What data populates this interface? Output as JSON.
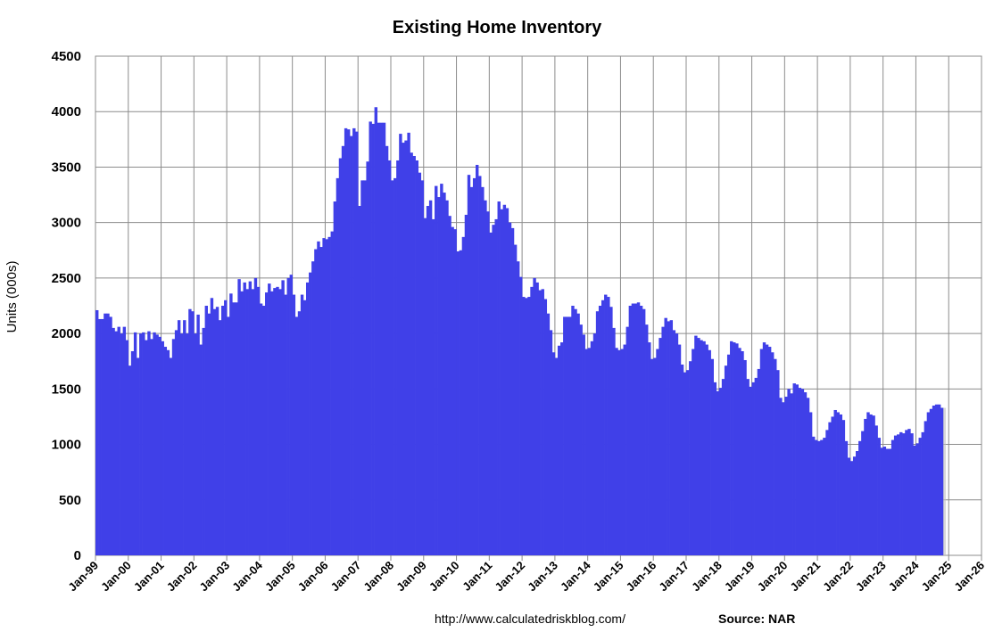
{
  "chart_data": {
    "type": "bar",
    "title": "Existing Home Inventory",
    "ylabel": "Units (000s)",
    "xlabel": "",
    "ylim": [
      0,
      4500
    ],
    "yticks": [
      "0",
      "500",
      "1000",
      "1500",
      "2000",
      "2500",
      "3000",
      "3500",
      "4000",
      "4500"
    ],
    "xlim_years": [
      1999,
      2026
    ],
    "xticks": [
      "Jan-99",
      "Jan-00",
      "Jan-01",
      "Jan-02",
      "Jan-03",
      "Jan-04",
      "Jan-05",
      "Jan-06",
      "Jan-07",
      "Jan-08",
      "Jan-09",
      "Jan-10",
      "Jan-11",
      "Jan-12",
      "Jan-13",
      "Jan-14",
      "Jan-15",
      "Jan-16",
      "Jan-17",
      "Jan-18",
      "Jan-19",
      "Jan-20",
      "Jan-21",
      "Jan-22",
      "Jan-23",
      "Jan-24",
      "Jan-25",
      "Jan-26"
    ],
    "grid": true,
    "bar_color": "#4040E8",
    "start": "Jan-99",
    "series": [
      {
        "values": [
          2210,
          2130,
          2130,
          2180,
          2180,
          2150,
          2050,
          2020,
          2060,
          2000,
          2060,
          1940,
          1710,
          1840,
          2010,
          1780,
          2000,
          2010,
          1940,
          2020,
          1950,
          2010,
          1990,
          1970,
          1930,
          1880,
          1850,
          1780,
          1950,
          2030,
          2120,
          2000,
          2120,
          2000,
          2220,
          2200,
          2000,
          2170,
          1900,
          2050,
          2250,
          2180,
          2320,
          2220,
          2240,
          2120,
          2250,
          2300,
          2150,
          2360,
          2280,
          2280,
          2490,
          2380,
          2460,
          2400,
          2470,
          2400,
          2500,
          2420,
          2270,
          2250,
          2370,
          2450,
          2380,
          2410,
          2420,
          2400,
          2480,
          2350,
          2500,
          2530,
          2350,
          2150,
          2200,
          2350,
          2300,
          2460,
          2550,
          2650,
          2760,
          2830,
          2780,
          2860,
          2850,
          2870,
          2920,
          3190,
          3400,
          3580,
          3690,
          3850,
          3840,
          3780,
          3850,
          3820,
          3150,
          3380,
          3380,
          3550,
          3910,
          3890,
          4040,
          3900,
          3900,
          3900,
          3690,
          3560,
          3380,
          3400,
          3560,
          3800,
          3720,
          3740,
          3810,
          3630,
          3600,
          3560,
          3450,
          3380,
          3040,
          3150,
          3200,
          3030,
          3330,
          3230,
          3350,
          3270,
          3200,
          3060,
          2960,
          2940,
          2740,
          2750,
          2870,
          3070,
          3430,
          3320,
          3400,
          3520,
          3420,
          3320,
          3200,
          3100,
          2910,
          2980,
          3030,
          3190,
          3120,
          3160,
          3130,
          3000,
          2950,
          2800,
          2650,
          2510,
          2330,
          2320,
          2330,
          2420,
          2500,
          2460,
          2390,
          2400,
          2310,
          2180,
          2030,
          1830,
          1780,
          1890,
          1920,
          2150,
          2150,
          2150,
          2250,
          2220,
          2180,
          2080,
          1990,
          1860,
          1870,
          1930,
          2000,
          2200,
          2250,
          2300,
          2350,
          2330,
          2240,
          2050,
          1870,
          1850,
          1860,
          1900,
          2060,
          2250,
          2270,
          2270,
          2280,
          2250,
          2220,
          2080,
          1920,
          1770,
          1780,
          1860,
          1960,
          2060,
          2140,
          2110,
          2120,
          2030,
          2000,
          1900,
          1720,
          1650,
          1670,
          1750,
          1860,
          1980,
          1960,
          1940,
          1930,
          1900,
          1850,
          1770,
          1560,
          1480,
          1510,
          1590,
          1710,
          1810,
          1930,
          1920,
          1910,
          1870,
          1840,
          1760,
          1590,
          1520,
          1560,
          1600,
          1680,
          1860,
          1920,
          1900,
          1880,
          1830,
          1770,
          1670,
          1420,
          1380,
          1430,
          1500,
          1460,
          1550,
          1540,
          1510,
          1500,
          1470,
          1420,
          1290,
          1070,
          1040,
          1030,
          1040,
          1060,
          1130,
          1200,
          1250,
          1310,
          1290,
          1270,
          1220,
          1030,
          880,
          850,
          890,
          940,
          1030,
          1120,
          1230,
          1290,
          1270,
          1260,
          1170,
          1060,
          970,
          980,
          960,
          960,
          1040,
          1080,
          1090,
          1110,
          1100,
          1130,
          1140,
          1100,
          990,
          1010,
          1060,
          1110,
          1210,
          1290,
          1320,
          1350,
          1360,
          1360,
          1330
        ]
      }
    ]
  },
  "footer": {
    "url": "http://www.calculatedriskblog.com/",
    "source": "Source: NAR"
  }
}
